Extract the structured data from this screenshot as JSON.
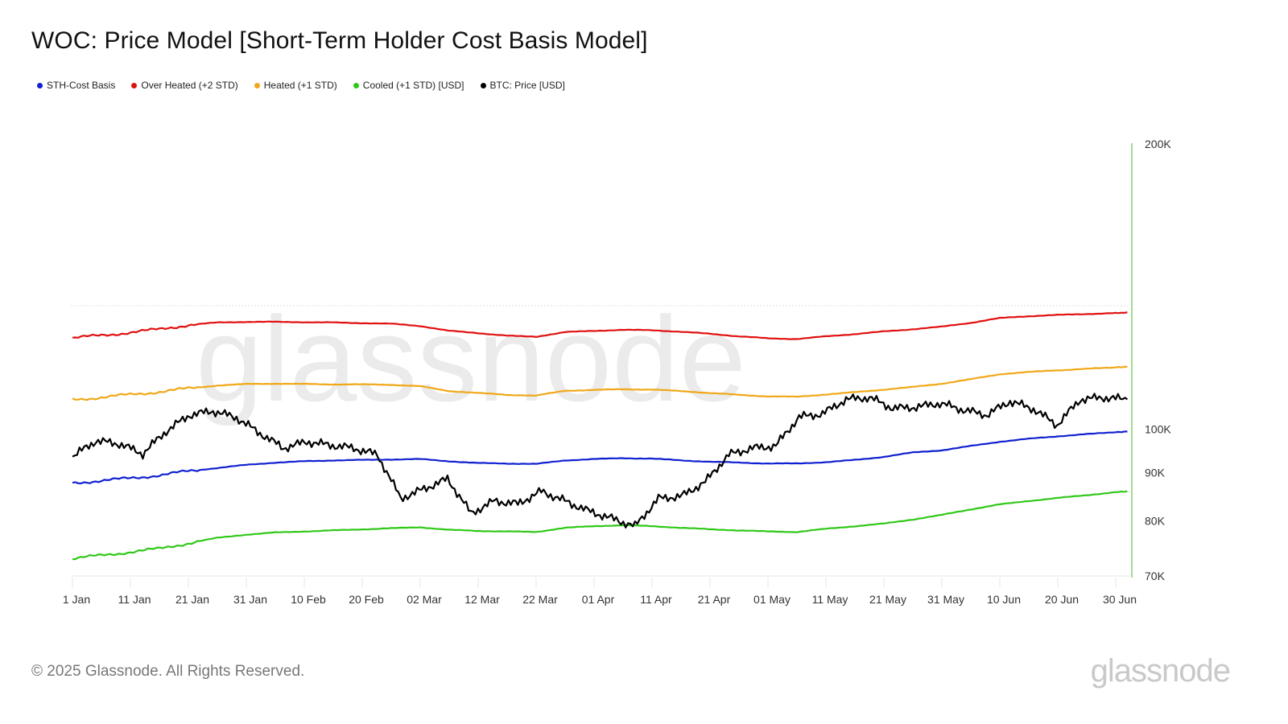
{
  "title": "WOC: Price Model [Short-Term Holder Cost Basis Model]",
  "legend": [
    {
      "label": "STH-Cost Basis",
      "color": "#1020d0"
    },
    {
      "label": "Over Heated (+2 STD)",
      "color": "#e01010"
    },
    {
      "label": "Heated (+1 STD)",
      "color": "#f0a818"
    },
    {
      "label": "Cooled (+1 STD) [USD]",
      "color": "#30c818"
    },
    {
      "label": "BTC: Price [USD]",
      "color": "#000000"
    }
  ],
  "footer": {
    "copyright": "© 2025 Glassnode. All Rights Reserved.",
    "logo": "glassnode"
  },
  "watermark": "glassnode",
  "chart_data": {
    "type": "line",
    "title": "WOC: Price Model [Short-Term Holder Cost Basis Model]",
    "xlabel": "",
    "ylabel": "",
    "y_scale": "log",
    "ylim": [
      70000,
      200000
    ],
    "y_ticks": [
      "70K",
      "80K",
      "90K",
      "100K",
      "200K"
    ],
    "y_tick_values": [
      70000,
      80000,
      90000,
      100000,
      200000
    ],
    "x_ticks": [
      "1 Jan",
      "11 Jan",
      "21 Jan",
      "31 Jan",
      "10 Feb",
      "20 Feb",
      "02 Mar",
      "12 Mar",
      "22 Mar",
      "01 Apr",
      "11 Apr",
      "21 Apr",
      "01 May",
      "11 May",
      "21 May",
      "31 May",
      "10 Jun",
      "20 Jun",
      "30 Jun"
    ],
    "x_day_index": [
      0,
      5,
      10,
      15,
      20,
      25,
      30,
      35,
      40,
      45,
      50,
      55,
      60,
      65,
      70,
      75,
      80,
      85,
      90,
      95,
      100,
      105,
      110,
      115,
      120,
      125,
      130,
      135,
      140,
      145,
      150,
      155,
      160,
      165,
      170,
      175,
      180,
      182
    ],
    "series": [
      {
        "name": "STH-Cost Basis",
        "color": "#1020d0",
        "values": [
          87800,
          88200,
          88800,
          89400,
          90300,
          91000,
          91700,
          92200,
          92500,
          92700,
          92800,
          92900,
          93000,
          92500,
          92100,
          92000,
          91900,
          92700,
          93000,
          93200,
          93100,
          92700,
          92400,
          92200,
          92000,
          92000,
          92300,
          92800,
          93500,
          94500,
          95000,
          96000,
          97000,
          97700,
          98300,
          98800,
          99300,
          99400
        ]
      },
      {
        "name": "Over Heated (+2 STD)",
        "color": "#e01010",
        "values": [
          124800,
          125600,
          126500,
          127500,
          128800,
          129600,
          129800,
          129800,
          129700,
          129600,
          129400,
          129200,
          128500,
          127000,
          126300,
          125500,
          125200,
          126600,
          127000,
          127300,
          127200,
          126700,
          126100,
          125300,
          124700,
          124500,
          125300,
          126000,
          126800,
          127500,
          128300,
          129500,
          131000,
          131600,
          132000,
          132300,
          132600,
          132800
        ]
      },
      {
        "name": "Heated (+1 STD)",
        "color": "#f0a818",
        "values": [
          107500,
          108000,
          108800,
          109500,
          110400,
          111200,
          111600,
          111700,
          111600,
          111500,
          111500,
          111400,
          111000,
          109700,
          109200,
          108700,
          108500,
          109800,
          110000,
          110200,
          110100,
          109700,
          109200,
          108700,
          108300,
          108200,
          108800,
          109400,
          110100,
          110800,
          111700,
          112900,
          114300,
          114900,
          115400,
          115800,
          116200,
          116400
        ]
      },
      {
        "name": "Cooled (+1 STD) [USD]",
        "color": "#30c818",
        "values": [
          73000,
          73600,
          74200,
          74800,
          75800,
          76800,
          77400,
          77800,
          78000,
          78200,
          78400,
          78600,
          78800,
          78300,
          78100,
          78000,
          77900,
          78700,
          79000,
          79200,
          79000,
          78700,
          78400,
          78200,
          78000,
          77900,
          78500,
          79000,
          79500,
          80300,
          81200,
          82300,
          83300,
          84000,
          84600,
          85200,
          85800,
          86000
        ]
      },
      {
        "name": "BTC: Price [USD]",
        "color": "#000000",
        "values": [
          93500,
          97200,
          96500,
          94200,
          99500,
          103500,
          104500,
          102800,
          99000,
          95500,
          97000,
          96200,
          95500,
          94000,
          84500,
          86500,
          88600,
          81500,
          84000,
          83400,
          86000,
          84000,
          82000,
          80500,
          79000,
          84500,
          85000,
          88000,
          94000,
          95500,
          96000,
          103000,
          103800,
          107500,
          108000,
          105200,
          105500,
          106500,
          104800,
          103500,
          107000,
          105000,
          101000,
          107500,
          108000,
          107500
        ]
      }
    ],
    "btc_x_day_index": [
      0,
      5,
      10,
      15,
      20,
      25,
      30,
      35,
      40,
      45,
      50,
      55,
      60,
      65,
      70,
      75,
      80,
      85,
      90,
      95,
      100,
      105,
      99,
      100,
      98,
      102,
      105,
      110,
      115,
      120,
      125,
      130,
      135,
      140,
      142,
      145,
      150,
      155,
      160,
      165,
      170,
      172,
      175,
      178,
      180,
      182
    ],
    "gridlines": {
      "horizontal": [
        135000
      ],
      "style": "dotted"
    },
    "legend_position": "top-left"
  }
}
